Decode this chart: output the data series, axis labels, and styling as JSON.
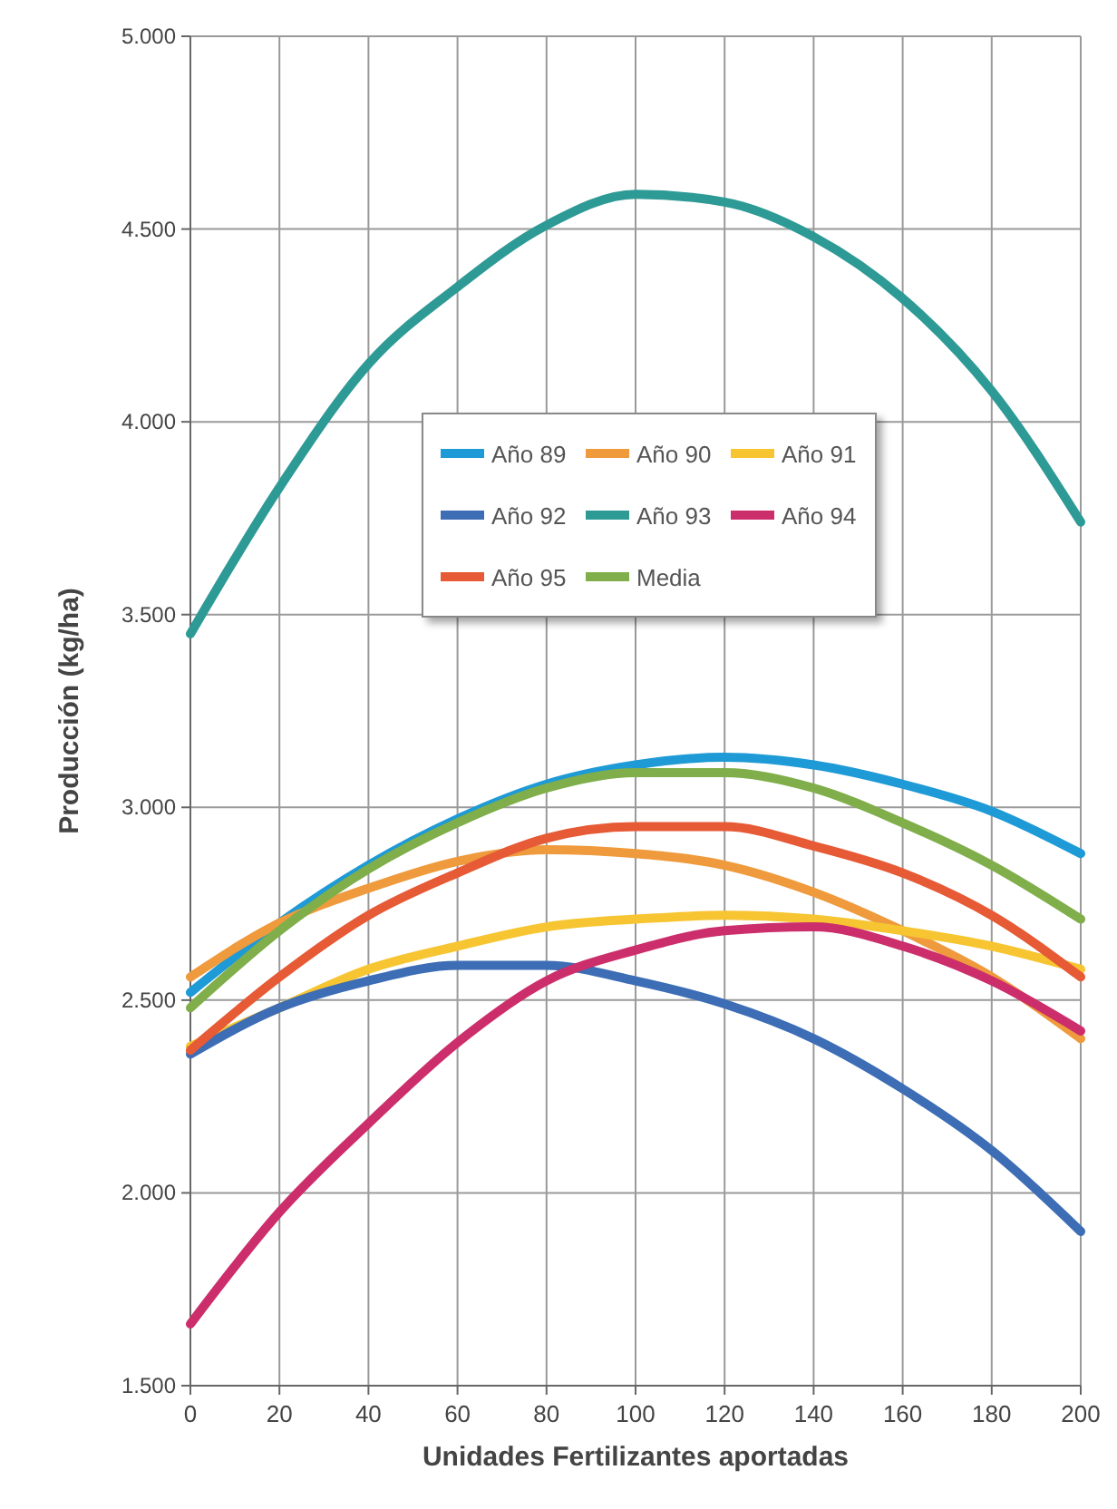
{
  "chart_data": {
    "type": "line",
    "xlabel": "Unidades Fertilizantes aportadas",
    "ylabel": "Producción (kg/ha)",
    "x": [
      0,
      20,
      40,
      60,
      80,
      100,
      120,
      140,
      160,
      180,
      200
    ],
    "xlim": [
      0,
      200
    ],
    "xticks": [
      0,
      20,
      40,
      60,
      80,
      100,
      120,
      140,
      160,
      180,
      200
    ],
    "ylim": [
      1500,
      5000
    ],
    "yticks": [
      {
        "value": 1500,
        "label": "1.500"
      },
      {
        "value": 2000,
        "label": "2.000"
      },
      {
        "value": 2500,
        "label": "2.500"
      },
      {
        "value": 3000,
        "label": "3.000"
      },
      {
        "value": 3500,
        "label": "3.500"
      },
      {
        "value": 4000,
        "label": "4.000"
      },
      {
        "value": 4500,
        "label": "4.500"
      },
      {
        "value": 5000,
        "label": "5.000"
      }
    ],
    "grid": true,
    "legend": "top",
    "marker": "none",
    "line_style": "solid",
    "series": [
      {
        "name": "Año 89",
        "color": "#1e9ad6",
        "values": [
          2520,
          2700,
          2850,
          2970,
          3060,
          3110,
          3130,
          3110,
          3060,
          2990,
          2880
        ]
      },
      {
        "name": "Año 90",
        "color": "#ef9a3c",
        "values": [
          2560,
          2700,
          2790,
          2860,
          2890,
          2880,
          2850,
          2780,
          2680,
          2560,
          2400
        ]
      },
      {
        "name": "Año 91",
        "color": "#f6c531",
        "values": [
          2380,
          2480,
          2580,
          2640,
          2690,
          2710,
          2720,
          2710,
          2680,
          2640,
          2580
        ]
      },
      {
        "name": "Año 92",
        "color": "#3d6db5",
        "values": [
          2360,
          2480,
          2550,
          2590,
          2590,
          2550,
          2490,
          2400,
          2270,
          2110,
          1900
        ]
      },
      {
        "name": "Año 93",
        "color": "#2e9a96",
        "values": [
          3450,
          3830,
          4150,
          4350,
          4510,
          4590,
          4570,
          4480,
          4320,
          4080,
          3740
        ]
      },
      {
        "name": "Año 94",
        "color": "#cc2e6b",
        "values": [
          1660,
          1950,
          2180,
          2390,
          2550,
          2630,
          2680,
          2690,
          2640,
          2550,
          2420
        ]
      },
      {
        "name": "Año 95",
        "color": "#e65a36",
        "values": [
          2370,
          2560,
          2720,
          2830,
          2920,
          2950,
          2950,
          2900,
          2830,
          2720,
          2560
        ]
      },
      {
        "name": "Media",
        "color": "#7fae4a",
        "values": [
          2480,
          2680,
          2840,
          2960,
          3050,
          3090,
          3090,
          3050,
          2960,
          2850,
          2710
        ]
      }
    ]
  }
}
